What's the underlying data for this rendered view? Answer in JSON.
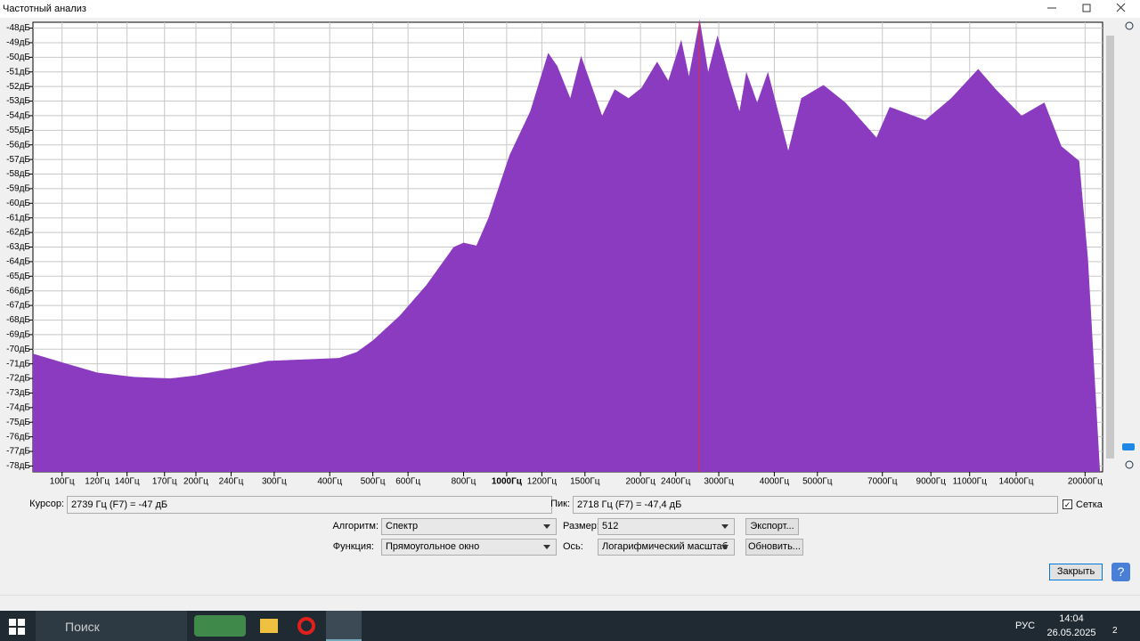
{
  "window": {
    "title": "Частотный анализ"
  },
  "chart_data": {
    "type": "area",
    "color": "#8b3bc0",
    "xscale": "log",
    "grid": true,
    "x": [
      86,
      100,
      120,
      145,
      175,
      200,
      250,
      290,
      350,
      420,
      460,
      500,
      575,
      660,
      760,
      800,
      855,
      910,
      1015,
      1130,
      1240,
      1300,
      1390,
      1470,
      1640,
      1750,
      1880,
      2010,
      2180,
      2310,
      2470,
      2570,
      2718,
      2840,
      2980,
      3160,
      3340,
      3460,
      3660,
      3870,
      4300,
      4600,
      5160,
      5780,
      6790,
      7270,
      8740,
      10000,
      11500,
      12600,
      14400,
      16200,
      17700,
      19400,
      20300,
      21600
    ],
    "values": [
      -70.3,
      -70.9,
      -71.6,
      -71.9,
      -72.0,
      -71.8,
      -71.2,
      -70.8,
      -70.7,
      -70.6,
      -70.2,
      -69.4,
      -67.7,
      -65.6,
      -63.0,
      -62.7,
      -62.9,
      -61.0,
      -56.7,
      -53.7,
      -49.7,
      -50.6,
      -52.8,
      -49.9,
      -54.0,
      -52.2,
      -52.8,
      -52.1,
      -50.3,
      -51.6,
      -48.8,
      -51.3,
      -47.4,
      -51.0,
      -48.5,
      -51.3,
      -53.7,
      -51.0,
      -53.1,
      -51.0,
      -56.4,
      -52.8,
      -51.9,
      -53.1,
      -55.5,
      -53.4,
      -54.3,
      -52.8,
      -50.8,
      -52.2,
      -54.0,
      -53.1,
      -56.1,
      -57.1,
      -63.8,
      -78.3
    ],
    "xlim": [
      86,
      21900
    ],
    "ylim": [
      -78.4,
      -47.6
    ],
    "xticks": [
      {
        "value": 100,
        "label": "100Гц"
      },
      {
        "value": 120,
        "label": "120Гц"
      },
      {
        "value": 140,
        "label": "140Гц"
      },
      {
        "value": 170,
        "label": "170Гц"
      },
      {
        "value": 200,
        "label": "200Гц"
      },
      {
        "value": 240,
        "label": "240Гц"
      },
      {
        "value": 300,
        "label": "300Гц"
      },
      {
        "value": 400,
        "label": "400Гц"
      },
      {
        "value": 500,
        "label": "500Гц"
      },
      {
        "value": 600,
        "label": "600Гц"
      },
      {
        "value": 800,
        "label": "800Гц"
      },
      {
        "value": 1000,
        "label": "1000Гц"
      },
      {
        "value": 1200,
        "label": "1200Гц"
      },
      {
        "value": 1500,
        "label": "1500Гц"
      },
      {
        "value": 2000,
        "label": "2000Гц"
      },
      {
        "value": 2400,
        "label": "2400Гц"
      },
      {
        "value": 3000,
        "label": "3000Гц"
      },
      {
        "value": 4000,
        "label": "4000Гц"
      },
      {
        "value": 5000,
        "label": "5000Гц"
      },
      {
        "value": 7000,
        "label": "7000Гц"
      },
      {
        "value": 9000,
        "label": "9000Гц"
      },
      {
        "value": 11000,
        "label": "11000Гц"
      },
      {
        "value": 14000,
        "label": "14000Гц"
      },
      {
        "value": 20000,
        "label": "20000Гц"
      }
    ],
    "yticks": [
      {
        "value": -48,
        "label": "-48дБ"
      },
      {
        "value": -49,
        "label": "-49дБ"
      },
      {
        "value": -50,
        "label": "-50дБ"
      },
      {
        "value": -51,
        "label": "-51дБ"
      },
      {
        "value": -52,
        "label": "-52дБ"
      },
      {
        "value": -53,
        "label": "-53дБ"
      },
      {
        "value": -54,
        "label": "-54дБ"
      },
      {
        "value": -55,
        "label": "-55дБ"
      },
      {
        "value": -56,
        "label": "-56дБ"
      },
      {
        "value": -57,
        "label": "-57дБ"
      },
      {
        "value": -58,
        "label": "-58дБ"
      },
      {
        "value": -59,
        "label": "-59дБ"
      },
      {
        "value": -60,
        "label": "-60дБ"
      },
      {
        "value": -61,
        "label": "-61дБ"
      },
      {
        "value": -62,
        "label": "-62дБ"
      },
      {
        "value": -63,
        "label": "-63дБ"
      },
      {
        "value": -64,
        "label": "-64дБ"
      },
      {
        "value": -65,
        "label": "-65дБ"
      },
      {
        "value": -66,
        "label": "-66дБ"
      },
      {
        "value": -67,
        "label": "-67дБ"
      },
      {
        "value": -68,
        "label": "-68дБ"
      },
      {
        "value": -69,
        "label": "-69дБ"
      },
      {
        "value": -70,
        "label": "-70дБ"
      },
      {
        "value": -71,
        "label": "-71дБ"
      },
      {
        "value": -72,
        "label": "-72дБ"
      },
      {
        "value": -73,
        "label": "-73дБ"
      },
      {
        "value": -74,
        "label": "-74дБ"
      },
      {
        "value": -75,
        "label": "-75дБ"
      },
      {
        "value": -76,
        "label": "-76дБ"
      },
      {
        "value": -77,
        "label": "-77дБ"
      },
      {
        "value": -78,
        "label": "-78дБ"
      }
    ]
  },
  "controls": {
    "cursor_label": "Курсор:",
    "cursor_value": "2739 Гц (F7) = -47 дБ",
    "peak_label": "Пик:",
    "peak_value": "2718 Гц (F7) = -47,4 дБ",
    "grid_label": "Сетка",
    "algorithm_label": "Алгоритм:",
    "algorithm": "Спектр",
    "size_label": "Размер:",
    "size": "512",
    "export": "Экспорт...",
    "function_label": "Функция:",
    "function": "Прямоугольное окно",
    "axis_label": "Ось:",
    "axis": "Логарифмический масштаб",
    "refresh": "Обновить...",
    "close": "Закрыть",
    "help": "?"
  },
  "taskbar": {
    "search": "Поиск",
    "language": "РУС",
    "time": "14:04",
    "date": "26.05.2025",
    "notifications": "2"
  }
}
